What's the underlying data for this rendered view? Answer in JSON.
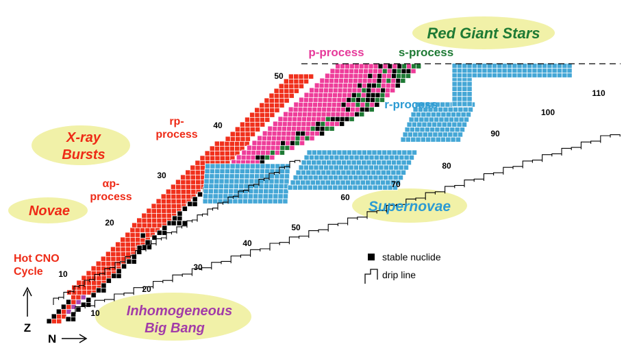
{
  "colors": {
    "red": "#f0301c",
    "pink": "#ee3d9a",
    "green": "#1e7a34",
    "blue": "#45a7d6",
    "purple": "#a845b0",
    "black": "#000000",
    "ellipse": "#f1f1a8",
    "green_text": "#1e7a34",
    "blue_text": "#2c9bd3",
    "purple_text": "#a23ca8",
    "red_text": "#ee2a16",
    "pink_text": "#e63a9a"
  },
  "ellipses": {
    "red_giant": "Red Giant Stars",
    "xray_1": "X-ray",
    "xray_2": "Bursts",
    "novae": "Novae",
    "supernovae": "Supernovae",
    "bigbang_1": "Inhomogeneous",
    "bigbang_2": "Big Bang"
  },
  "processes": {
    "p_process": "p-process",
    "s_process": "s-process",
    "r_process": "r-process",
    "rp_1": "rp-",
    "rp_2": "process",
    "ap_1": "αp-",
    "ap_2": "process",
    "hotcno_1": "Hot CNO",
    "hotcno_2": "Cycle"
  },
  "z_labels": [
    "10",
    "20",
    "30",
    "40",
    "50"
  ],
  "n_labels": [
    "10",
    "20",
    "30",
    "40",
    "50",
    "60",
    "70",
    "80",
    "90",
    "100",
    "110"
  ],
  "legend": {
    "stable": "stable nuclide",
    "drip": "drip line"
  },
  "axes": {
    "z": "Z",
    "n": "N"
  }
}
